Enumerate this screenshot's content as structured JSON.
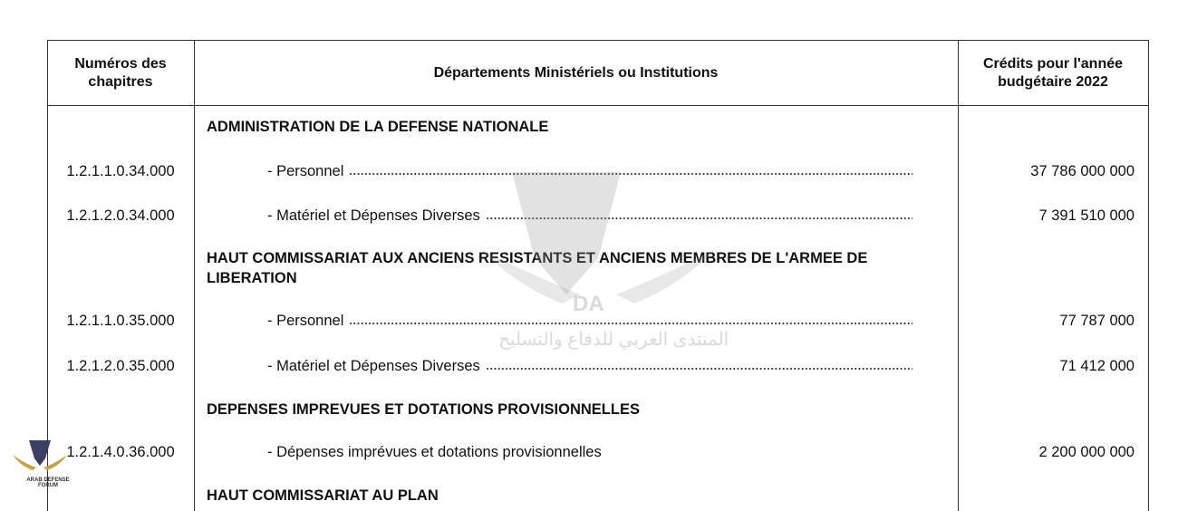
{
  "header": {
    "columns": [
      "Numéros des chapitres",
      "Départements Ministériels ou Institutions",
      "Crédits pour l'année budgétaire 2022"
    ]
  },
  "table": {
    "rows": [
      {
        "department": "ADMINISTRATION DE LA DEFENSE NATIONALE"
      },
      {
        "chapter": "1.2.1.1.0.34.000",
        "department": "- Personnel",
        "credit": "37 786 000 000"
      },
      {
        "chapter": "1.2.1.2.0.34.000",
        "department": "- Matériel et Dépenses Diverses",
        "credit": "7 391 510 000"
      },
      {
        "department": "HAUT COMMISSARIAT AUX ANCIENS RESISTANTS ET ANCIENS MEMBRES DE L'ARMEE DE LIBERATION"
      },
      {
        "chapter": "1.2.1.1.0.35.000",
        "department": "- Personnel",
        "credit": "77 787 000"
      },
      {
        "chapter": "1.2.1.2.0.35.000",
        "department": "- Matériel et Dépenses Diverses",
        "credit": "71 412 000"
      },
      {
        "department": "DEPENSES IMPREVUES ET DOTATIONS PROVISIONNELLES"
      },
      {
        "chapter": "1.2.1.4.0.36.000",
        "department": "- Dépenses imprévues et dotations provisionnelles",
        "credit": "2 200 000 000"
      },
      {
        "department": "HAUT COMMISSARIAT AU PLAN"
      }
    ]
  },
  "watermark": {
    "logo": "DA",
    "arabic": "المنتدى العربي للدفاع والتسليح",
    "corner": "ARAB DEFENSE FORUM"
  }
}
